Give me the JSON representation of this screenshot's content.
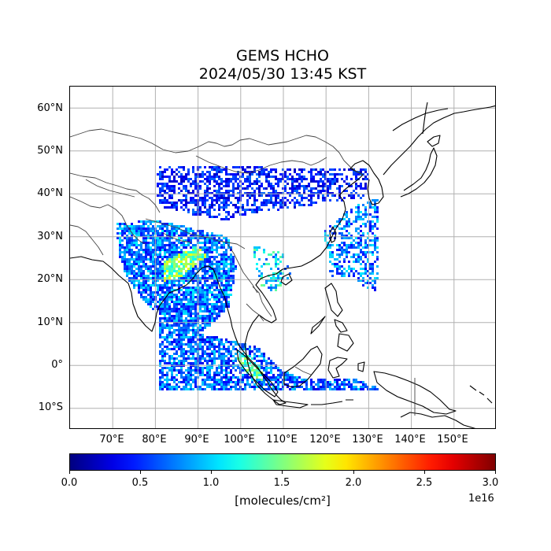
{
  "title": {
    "line1": "GEMS HCHO",
    "line2": "2024/05/30 13:45 KST"
  },
  "map": {
    "lon_range": [
      60,
      160
    ],
    "lat_range": [
      -15,
      65
    ],
    "lat_ticks": [
      {
        "value": 60,
        "label": "60°N"
      },
      {
        "value": 50,
        "label": "50°N"
      },
      {
        "value": 40,
        "label": "40°N"
      },
      {
        "value": 30,
        "label": "30°N"
      },
      {
        "value": 20,
        "label": "20°N"
      },
      {
        "value": 10,
        "label": "10°N"
      },
      {
        "value": 0,
        "label": "0°"
      },
      {
        "value": -10,
        "label": "10°S"
      }
    ],
    "lon_ticks": [
      {
        "value": 70,
        "label": "70°E"
      },
      {
        "value": 80,
        "label": "80°E"
      },
      {
        "value": 90,
        "label": "90°E"
      },
      {
        "value": 100,
        "label": "100°E"
      },
      {
        "value": 110,
        "label": "110°E"
      },
      {
        "value": 120,
        "label": "120°E"
      },
      {
        "value": 130,
        "label": "130°E"
      },
      {
        "value": 140,
        "label": "140°E"
      },
      {
        "value": 150,
        "label": "150°E"
      }
    ],
    "grid": true,
    "colors": {
      "coastline": "#000000",
      "borders": "#444444",
      "grid": "#b0b0b0"
    }
  },
  "colorbar": {
    "colormap": "jet",
    "range": [
      0.0,
      3.0
    ],
    "ticks": [
      "0.0",
      "0.5",
      "1.0",
      "1.5",
      "2.0",
      "2.5",
      "3.0"
    ],
    "unit_label": "[molecules/cm²]",
    "exponent_label": "1e16"
  }
}
